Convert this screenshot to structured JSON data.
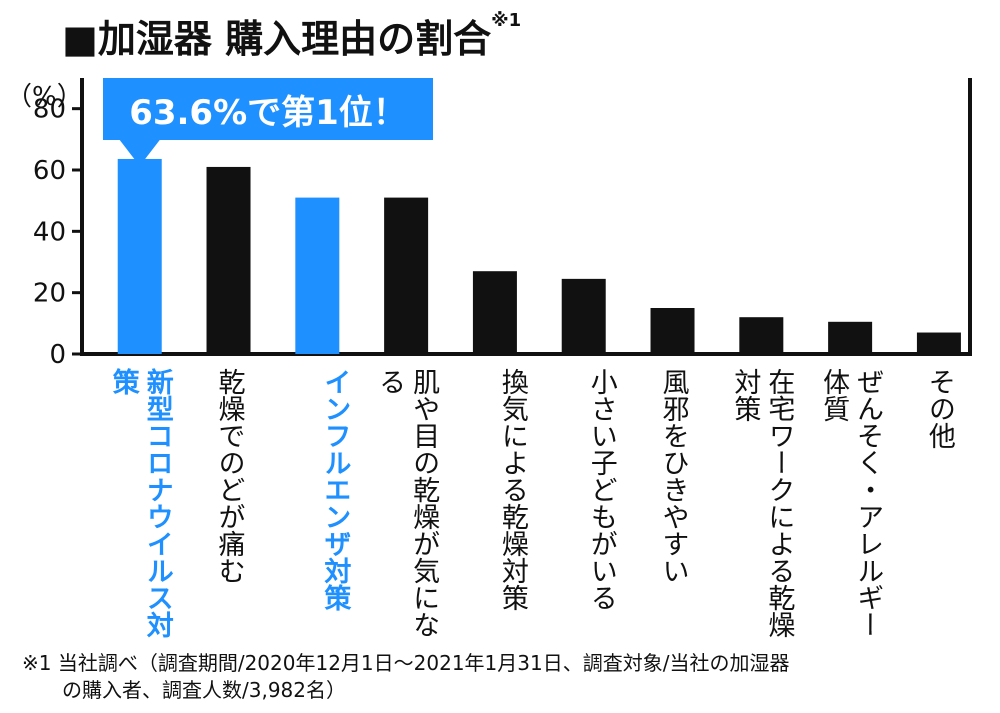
{
  "title": "■加湿器 購入理由の割合",
  "title_note": "※1",
  "callout": "63.6%で第1位！",
  "footnote": "※1 当社調べ（調査期間/2020年12月1日～2021年1月31日、調査対象/当社の加湿器\n　　の購入者、調査人数/3,982名）",
  "colors": {
    "highlight": "#1e90ff",
    "bar": "#111111"
  },
  "chart_data": {
    "type": "bar",
    "unit_label": "（%）",
    "ylim": [
      0,
      90
    ],
    "yticks": [
      0,
      20,
      40,
      60,
      80
    ],
    "categories": [
      "新型コロナウイルス対策",
      "乾燥でのどが痛む",
      "インフルエンザ対策",
      "肌や目の乾燥が気になる",
      "換気による乾燥対策",
      "小さい子どもがいる",
      "風邪をひきやすい",
      "在宅ワークによる乾燥対策",
      "ぜんそく・アレルギー体質",
      "その他"
    ],
    "values": [
      63.6,
      61,
      51,
      51,
      27,
      24.5,
      15,
      12,
      10.5,
      7
    ],
    "highlight": [
      true,
      false,
      true,
      false,
      false,
      false,
      false,
      false,
      false,
      false
    ]
  }
}
